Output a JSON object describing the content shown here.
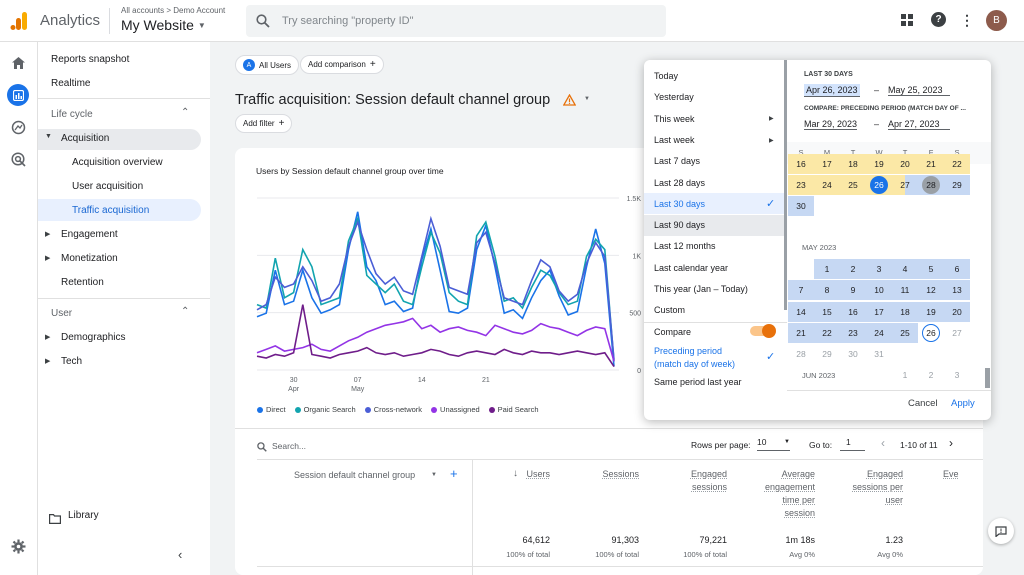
{
  "header": {
    "app_name": "Analytics",
    "breadcrumb": "All accounts > Demo Account",
    "property": "My Website",
    "search_placeholder": "Try searching \"property ID\"",
    "avatar_letter": "B"
  },
  "sidenav": {
    "reports_snapshot": "Reports snapshot",
    "realtime": "Realtime",
    "lifecycle": "Life cycle",
    "acquisition": "Acquisition",
    "acquisition_overview": "Acquisition overview",
    "user_acquisition": "User acquisition",
    "traffic_acquisition": "Traffic acquisition",
    "engagement": "Engagement",
    "monetization": "Monetization",
    "retention": "Retention",
    "user": "User",
    "demographics": "Demographics",
    "tech": "Tech",
    "library": "Library"
  },
  "toolbar": {
    "segment_badge": "A",
    "segment": "All Users",
    "add_comparison": "Add comparison",
    "page_title": "Traffic acquisition: Session default channel group",
    "add_filter": "Add filter"
  },
  "chart_data": {
    "type": "line",
    "title": "Users by Session default channel group over time",
    "x": [
      "Apr 30",
      "May 07",
      "May 14",
      "May 21"
    ],
    "ytick_labels": [
      "1.5K",
      "1K",
      "500",
      "0"
    ],
    "legend": [
      "Direct",
      "Organic Search",
      "Cross-network",
      "Unassigned",
      "Paid Search"
    ],
    "colors": {
      "Direct": "#1a73e8",
      "Organic Search": "#12a4af",
      "Cross-network": "#4b5ed6",
      "Unassigned": "#9334e6",
      "Paid Search": "#6f1d8a"
    }
  },
  "table": {
    "search_placeholder": "Search...",
    "rows_per_page_label": "Rows per page:",
    "rows_per_page": "10",
    "goto_label": "Go to:",
    "goto_value": "1",
    "pagination": "1-10 of 11",
    "dimension_header": "Session default channel group",
    "columns": [
      {
        "label": "Users",
        "total": "64,612",
        "sub": "100% of total"
      },
      {
        "label": "Sessions",
        "total": "91,303",
        "sub": "100% of total"
      },
      {
        "label": "Engaged sessions",
        "total": "79,221",
        "sub": "100% of total"
      },
      {
        "label": "Average engagement time per session",
        "total": "1m 18s",
        "sub": "Avg 0%"
      },
      {
        "label": "Engaged sessions per user",
        "total": "1.23",
        "sub": "Avg 0%"
      },
      {
        "label": "Eve",
        "total": "",
        "sub": ""
      }
    ]
  },
  "datepicker": {
    "presets": [
      "Today",
      "Yesterday",
      "This week",
      "Last week",
      "Last 7 days",
      "Last 28 days",
      "Last 30 days",
      "Last 90 days",
      "Last 12 months",
      "Last calendar year",
      "This year (Jan – Today)",
      "Custom"
    ],
    "selected_preset": "Last 30 days",
    "compare_label": "Compare",
    "compare_on": true,
    "compare_options": [
      "Preceding period (match day of week)",
      "Same period last year"
    ],
    "range_label": "LAST 30 DAYS",
    "start_date": "Apr 26, 2023",
    "end_date": "May 25, 2023",
    "compare_range_label": "COMPARE: PRECEDING PERIOD (MATCH DAY OF ...",
    "compare_start": "Mar 29, 2023",
    "compare_end": "Apr 27, 2023",
    "dash": "–",
    "weekdays": [
      "S",
      "M",
      "T",
      "W",
      "T",
      "F",
      "S"
    ],
    "april_rows": [
      [
        "16",
        "17",
        "18",
        "19",
        "20",
        "21",
        "22"
      ],
      [
        "23",
        "24",
        "25",
        "26",
        "27",
        "28",
        "29"
      ],
      [
        "30"
      ]
    ],
    "may_label": "MAY 2023",
    "may_rows": [
      [
        "",
        "1",
        "2",
        "3",
        "4",
        "5",
        "6"
      ],
      [
        "7",
        "8",
        "9",
        "10",
        "11",
        "12",
        "13"
      ],
      [
        "14",
        "15",
        "16",
        "17",
        "18",
        "19",
        "20"
      ],
      [
        "21",
        "22",
        "23",
        "24",
        "25",
        "26",
        "27"
      ],
      [
        "28",
        "29",
        "30",
        "31"
      ]
    ],
    "june_label": "JUN 2023",
    "june_row": [
      "",
      "",
      "",
      "",
      "1",
      "2",
      "3"
    ],
    "cancel": "Cancel",
    "apply": "Apply"
  }
}
